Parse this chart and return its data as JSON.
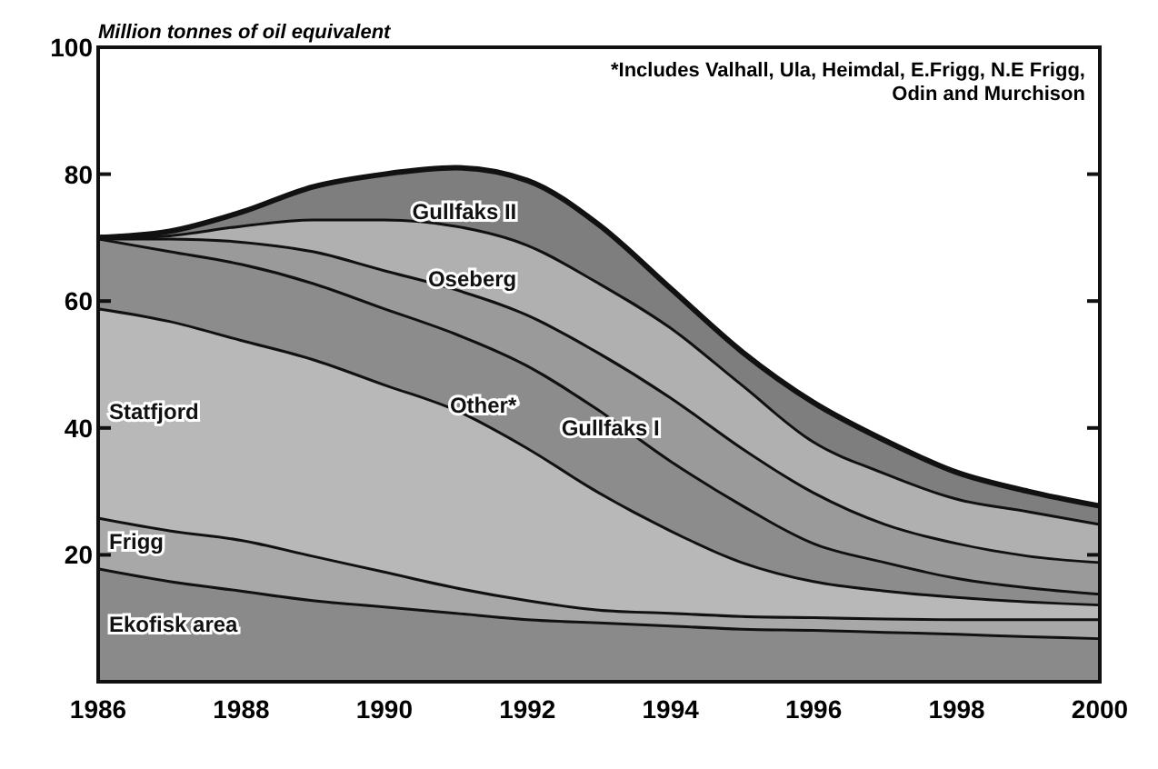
{
  "chart_data": {
    "type": "area",
    "stacked": true,
    "ylabel": "Million tonnes of oil equivalent",
    "annotations": [
      "*Includes Valhall, Ula, Heimdal, E.Frigg, N.E Frigg, Odin and Murchison"
    ],
    "x": [
      1986,
      1987,
      1988,
      1989,
      1990,
      1991,
      1992,
      1993,
      1994,
      1995,
      1996,
      1997,
      1998,
      1999,
      2000
    ],
    "xlim": [
      1986,
      2000
    ],
    "xticks": [
      1986,
      1988,
      1990,
      1992,
      1994,
      1996,
      1998,
      2000
    ],
    "ylim": [
      0,
      100
    ],
    "yticks": [
      20,
      40,
      60,
      80,
      100
    ],
    "series": [
      {
        "name": "Ekofisk area",
        "color": "#8a8a8a",
        "values": [
          18,
          16,
          14.5,
          13,
          12,
          11,
          10,
          9.5,
          9,
          8.5,
          8.3,
          8,
          7.7,
          7.3,
          7
        ]
      },
      {
        "name": "Frigg",
        "color": "#a8a8a8",
        "values": [
          8,
          8,
          8,
          7,
          5.5,
          4,
          3,
          2,
          2,
          2,
          2,
          2.1,
          2.3,
          2.7,
          3
        ]
      },
      {
        "name": "Statfjord",
        "color": "#b8b8b8",
        "values": [
          33,
          33,
          31.5,
          31,
          29.5,
          28,
          24,
          18.5,
          13,
          8.5,
          5.7,
          4.4,
          3.5,
          2.8,
          2.3
        ]
      },
      {
        "name": "Other*",
        "color": "#8c8c8c",
        "values": [
          11,
          11,
          12,
          12,
          12,
          12,
          13,
          13,
          11,
          9,
          6,
          4.5,
          3,
          2.2,
          1.7
        ]
      },
      {
        "name": "Gullfaks I",
        "color": "#9a9a9a",
        "values": [
          0,
          2,
          3.5,
          5,
          6,
          7,
          8,
          9,
          10,
          9,
          8,
          6,
          5.5,
          5,
          5
        ]
      },
      {
        "name": "Oseberg",
        "color": "#b0b0b0",
        "values": [
          0,
          0.5,
          2.5,
          5,
          8,
          10,
          11,
          11,
          11,
          10,
          8,
          8,
          7,
          7,
          6
        ]
      },
      {
        "name": "Gullfaks II",
        "color": "#7e7e7e",
        "values": [
          0,
          0.5,
          2,
          5,
          7,
          9,
          10,
          9,
          6,
          5,
          6,
          5,
          4,
          3,
          2.7
        ]
      }
    ]
  }
}
